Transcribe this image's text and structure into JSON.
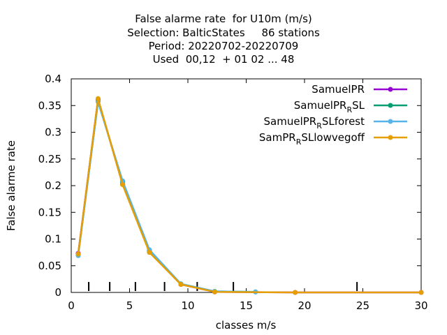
{
  "chart_data": {
    "type": "line",
    "title_lines": [
      "False alarme rate  for U10m (m/s)",
      "Selection: BalticStates     86 stations",
      "Period: 20220702-20220709",
      "Used  00,12  + 01 02 ... 48"
    ],
    "xlabel": "classes m/s",
    "ylabel": "False alarme rate",
    "xlim": [
      0,
      30
    ],
    "ylim": [
      0,
      0.4
    ],
    "x_ticks": [
      "0",
      "5",
      "10",
      "15",
      "20",
      "25",
      "30"
    ],
    "y_ticks": [
      "0",
      "0.05",
      "0.1",
      "0.15",
      "0.2",
      "0.25",
      "0.3",
      "0.35",
      "0.4"
    ],
    "grid": false,
    "legend_position": "top-right",
    "class_bounds": [
      1.5,
      3.3,
      5.5,
      8.0,
      10.8,
      13.9,
      24.5
    ],
    "series": [
      {
        "name": "SamuelPR",
        "name_sub": "",
        "name_tail": "",
        "color": "#9400d3",
        "x": [
          0.6,
          2.3,
          4.4,
          6.7,
          9.4,
          12.3,
          19.2,
          30.0
        ],
        "y": [
          0.073,
          0.362,
          0.203,
          0.077,
          0.015,
          0.001,
          0.0,
          0.0
        ]
      },
      {
        "name": "SamuelPR",
        "name_sub": "R",
        "name_tail": "SL",
        "color": "#009e73",
        "x": [
          0.6,
          2.3,
          4.4,
          6.7,
          9.4,
          12.3,
          15.8
        ],
        "y": [
          0.07,
          0.358,
          0.207,
          0.079,
          0.016,
          0.002,
          0.001
        ]
      },
      {
        "name": "SamuelPR",
        "name_sub": "R",
        "name_tail": "SLforest",
        "color": "#56b4e9",
        "x": [
          0.6,
          2.3,
          4.4,
          6.7,
          9.4,
          12.3,
          15.8
        ],
        "y": [
          0.069,
          0.357,
          0.209,
          0.08,
          0.016,
          0.002,
          0.001
        ]
      },
      {
        "name": "SamPR",
        "name_sub": "R",
        "name_tail": "SLlowvegoff",
        "color": "#e69f00",
        "x": [
          0.6,
          2.3,
          4.4,
          6.7,
          9.4,
          12.3,
          19.2,
          30.0
        ],
        "y": [
          0.072,
          0.363,
          0.202,
          0.075,
          0.015,
          0.001,
          0.0,
          0.0
        ]
      }
    ]
  }
}
